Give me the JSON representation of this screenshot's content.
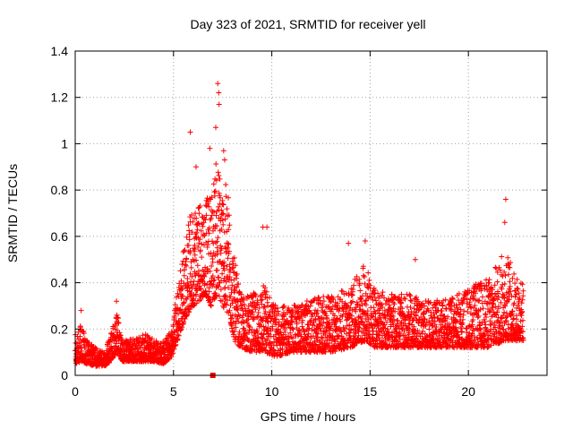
{
  "chart_data": {
    "type": "scatter",
    "title": "Day 323 of 2021, SRMTID for receiver yell",
    "xlabel": "GPS time / hours",
    "ylabel": "SRMTID / TECUs",
    "xlim": [
      0,
      24
    ],
    "ylim": [
      0,
      1.4
    ],
    "xticks": [
      0,
      5,
      10,
      15,
      20
    ],
    "xtick_labels": [
      "0",
      "5",
      "10",
      "15",
      "20"
    ],
    "yticks": [
      0,
      0.2,
      0.4,
      0.6,
      0.8,
      1.0,
      1.2,
      1.4
    ],
    "ytick_labels": [
      "0",
      "0.2",
      "0.4",
      "0.6",
      "0.8",
      "1",
      "1.2",
      "1.4"
    ],
    "grid": true,
    "marker": "+",
    "color": "#ff0000",
    "series": [
      {
        "name": "SRMTID",
        "envelope": [
          [
            0.0,
            0.05,
            0.18
          ],
          [
            0.3,
            0.06,
            0.22
          ],
          [
            0.6,
            0.05,
            0.15
          ],
          [
            1.0,
            0.04,
            0.12
          ],
          [
            1.5,
            0.04,
            0.1
          ],
          [
            1.8,
            0.06,
            0.18
          ],
          [
            2.1,
            0.1,
            0.28
          ],
          [
            2.4,
            0.06,
            0.15
          ],
          [
            3.0,
            0.06,
            0.16
          ],
          [
            3.5,
            0.06,
            0.18
          ],
          [
            4.0,
            0.06,
            0.16
          ],
          [
            4.5,
            0.05,
            0.15
          ],
          [
            4.9,
            0.08,
            0.2
          ],
          [
            5.2,
            0.15,
            0.4
          ],
          [
            5.6,
            0.25,
            0.6
          ],
          [
            6.0,
            0.3,
            0.75
          ],
          [
            6.3,
            0.32,
            0.8
          ],
          [
            6.6,
            0.35,
            0.75
          ],
          [
            6.9,
            0.3,
            0.8
          ],
          [
            7.2,
            0.35,
            0.95
          ],
          [
            7.5,
            0.3,
            0.85
          ],
          [
            7.8,
            0.25,
            0.8
          ],
          [
            8.1,
            0.15,
            0.5
          ],
          [
            8.4,
            0.12,
            0.35
          ],
          [
            9.0,
            0.1,
            0.35
          ],
          [
            9.6,
            0.1,
            0.4
          ],
          [
            10.2,
            0.08,
            0.3
          ],
          [
            11.0,
            0.1,
            0.3
          ],
          [
            12.0,
            0.1,
            0.33
          ],
          [
            13.0,
            0.1,
            0.35
          ],
          [
            14.0,
            0.12,
            0.38
          ],
          [
            14.8,
            0.15,
            0.5
          ],
          [
            15.2,
            0.12,
            0.38
          ],
          [
            16.0,
            0.12,
            0.35
          ],
          [
            17.0,
            0.12,
            0.35
          ],
          [
            18.0,
            0.12,
            0.32
          ],
          [
            19.0,
            0.12,
            0.33
          ],
          [
            20.0,
            0.12,
            0.38
          ],
          [
            21.0,
            0.12,
            0.42
          ],
          [
            21.9,
            0.15,
            0.55
          ],
          [
            22.3,
            0.15,
            0.45
          ],
          [
            22.8,
            0.15,
            0.4
          ]
        ],
        "step_hours": 0.012,
        "points_per_step": 2,
        "x_max": 22.8,
        "peaks": [
          {
            "x": 5.85,
            "y": 1.05
          },
          {
            "x": 6.15,
            "y": 0.9
          },
          {
            "x": 6.85,
            "y": 0.98
          },
          {
            "x": 7.15,
            "y": 1.07
          },
          {
            "x": 7.25,
            "y": 1.26
          },
          {
            "x": 7.3,
            "y": 1.22
          },
          {
            "x": 7.32,
            "y": 1.17
          },
          {
            "x": 7.55,
            "y": 0.97
          },
          {
            "x": 7.6,
            "y": 0.93
          },
          {
            "x": 9.55,
            "y": 0.64
          },
          {
            "x": 9.75,
            "y": 0.64
          },
          {
            "x": 13.9,
            "y": 0.57
          },
          {
            "x": 14.75,
            "y": 0.58
          },
          {
            "x": 21.9,
            "y": 0.76
          },
          {
            "x": 21.85,
            "y": 0.66
          },
          {
            "x": 17.3,
            "y": 0.5
          },
          {
            "x": 2.1,
            "y": 0.32
          },
          {
            "x": 0.3,
            "y": 0.28
          }
        ],
        "outliers": [
          {
            "x": 7.0,
            "y": 0.0
          }
        ]
      }
    ]
  }
}
